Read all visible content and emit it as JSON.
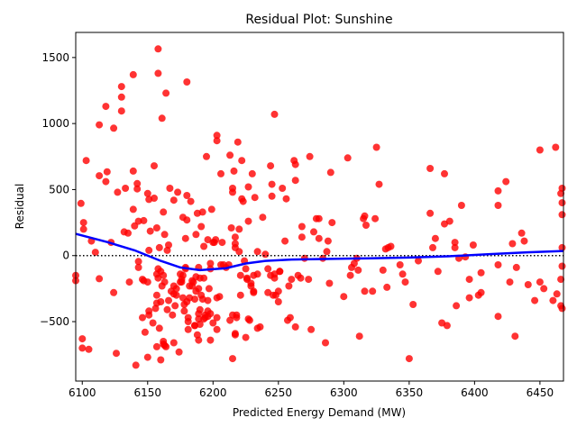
{
  "chart_data": {
    "type": "scatter",
    "title": "Residual Plot: Sunshine",
    "xlabel": "Predicted Energy Demand (MW)",
    "ylabel": "Residual",
    "xlim": [
      6095,
      6468
    ],
    "ylim": [
      -950,
      1690
    ],
    "xticks": [
      6100,
      6150,
      6200,
      6250,
      6300,
      6350,
      6400,
      6450
    ],
    "yticks": [
      -500,
      0,
      500,
      1000,
      1500
    ],
    "grid": false,
    "zero_line": {
      "y": 0,
      "style": "dotted",
      "color": "#000000"
    },
    "colors": {
      "points": "#ff0000",
      "trend": "#0000ff"
    },
    "points": [
      [
        6095,
        -150
      ],
      [
        6095,
        -190
      ],
      [
        6099,
        395
      ],
      [
        6100,
        -630
      ],
      [
        6100,
        -700
      ],
      [
        6101,
        250
      ],
      [
        6101,
        200
      ],
      [
        6103,
        720
      ],
      [
        6105,
        -710
      ],
      [
        6107,
        110
      ],
      [
        6110,
        25
      ],
      [
        6113,
        990
      ],
      [
        6113,
        605
      ],
      [
        6113,
        -175
      ],
      [
        6118,
        1130
      ],
      [
        6119,
        635
      ],
      [
        6118,
        560
      ],
      [
        6122,
        100
      ],
      [
        6124,
        -280
      ],
      [
        6124,
        965
      ],
      [
        6126,
        -740
      ],
      [
        6127,
        480
      ],
      [
        6130,
        1280
      ],
      [
        6130,
        1200
      ],
      [
        6130,
        1095
      ],
      [
        6132,
        180
      ],
      [
        6133,
        510
      ],
      [
        6135,
        170
      ],
      [
        6136,
        -200
      ],
      [
        6139,
        1370
      ],
      [
        6139,
        640
      ],
      [
        6139,
        350
      ],
      [
        6140,
        225
      ],
      [
        6141,
        -830
      ],
      [
        6142,
        545
      ],
      [
        6142,
        505
      ],
      [
        6143,
        260
      ],
      [
        6143,
        -90
      ],
      [
        6143,
        -45
      ],
      [
        6146,
        -470
      ],
      [
        6146,
        -180
      ],
      [
        6147,
        265
      ],
      [
        6147,
        -190
      ],
      [
        6148,
        -580
      ],
      [
        6150,
        470
      ],
      [
        6150,
        -770
      ],
      [
        6150,
        -200
      ],
      [
        6151,
        -420
      ],
      [
        6151,
        -450
      ],
      [
        6151,
        40
      ],
      [
        6151,
        425
      ],
      [
        6152,
        185
      ],
      [
        6154,
        -510
      ],
      [
        6155,
        680
      ],
      [
        6155,
        435
      ],
      [
        6156,
        -400
      ],
      [
        6157,
        -360
      ],
      [
        6157,
        -300
      ],
      [
        6157,
        210
      ],
      [
        6157,
        -690
      ],
      [
        6157,
        -140
      ],
      [
        6158,
        1565
      ],
      [
        6158,
        1380
      ],
      [
        6158,
        -100
      ],
      [
        6158,
        -170
      ],
      [
        6159,
        60
      ],
      [
        6160,
        -790
      ],
      [
        6159,
        -550
      ],
      [
        6160,
        -350
      ],
      [
        6160,
        -120
      ],
      [
        6161,
        -230
      ],
      [
        6161,
        1040
      ],
      [
        6162,
        -150
      ],
      [
        6162,
        330
      ],
      [
        6162,
        -650
      ],
      [
        6162,
        -670
      ],
      [
        6163,
        -680
      ],
      [
        6163,
        160
      ],
      [
        6163,
        -200
      ],
      [
        6164,
        -690
      ],
      [
        6164,
        1230
      ],
      [
        6165,
        40
      ],
      [
        6165,
        -410
      ],
      [
        6166,
        -340
      ],
      [
        6166,
        80
      ],
      [
        6167,
        510
      ],
      [
        6168,
        -270
      ],
      [
        6169,
        -450
      ],
      [
        6170,
        -660
      ],
      [
        6170,
        -290
      ],
      [
        6170,
        -230
      ],
      [
        6170,
        420
      ],
      [
        6171,
        -380
      ],
      [
        6172,
        -300
      ],
      [
        6172,
        -250
      ],
      [
        6173,
        480
      ],
      [
        6174,
        -730
      ],
      [
        6175,
        -200
      ],
      [
        6175,
        -140
      ],
      [
        6176,
        -180
      ],
      [
        6176,
        -200
      ],
      [
        6177,
        290
      ],
      [
        6177,
        -320
      ],
      [
        6177,
        -150
      ],
      [
        6178,
        -420
      ],
      [
        6178,
        -370
      ],
      [
        6179,
        130
      ],
      [
        6179,
        -100
      ],
      [
        6179,
        -90
      ],
      [
        6180,
        -350
      ],
      [
        6180,
        455
      ],
      [
        6180,
        1315
      ],
      [
        6180,
        270
      ],
      [
        6181,
        -470
      ],
      [
        6181,
        -500
      ],
      [
        6181,
        -560
      ],
      [
        6182,
        -230
      ],
      [
        6182,
        -320
      ],
      [
        6183,
        410
      ],
      [
        6184,
        -230
      ],
      [
        6184,
        -190
      ],
      [
        6185,
        -200
      ],
      [
        6186,
        -330
      ],
      [
        6186,
        -530
      ],
      [
        6186,
        -530
      ],
      [
        6187,
        160
      ],
      [
        6187,
        -270
      ],
      [
        6187,
        -160
      ],
      [
        6188,
        -600
      ],
      [
        6188,
        320
      ],
      [
        6189,
        -250
      ],
      [
        6189,
        -440
      ],
      [
        6189,
        -480
      ],
      [
        6189,
        -640
      ],
      [
        6189,
        -90
      ],
      [
        6190,
        -410
      ],
      [
        6190,
        -520
      ],
      [
        6190,
        -170
      ],
      [
        6191,
        -300
      ],
      [
        6191,
        220
      ],
      [
        6192,
        -330
      ],
      [
        6192,
        330
      ],
      [
        6193,
        70
      ],
      [
        6193,
        -170
      ],
      [
        6193,
        -480
      ],
      [
        6194,
        -470
      ],
      [
        6194,
        -450
      ],
      [
        6195,
        750
      ],
      [
        6196,
        120
      ],
      [
        6196,
        -340
      ],
      [
        6196,
        -460
      ],
      [
        6196,
        -420
      ],
      [
        6197,
        -250
      ],
      [
        6198,
        -640
      ],
      [
        6198,
        -440
      ],
      [
        6198,
        -100
      ],
      [
        6198,
        -60
      ],
      [
        6199,
        350
      ],
      [
        6200,
        -510
      ],
      [
        6200,
        100
      ],
      [
        6201,
        100
      ],
      [
        6202,
        120
      ],
      [
        6203,
        910
      ],
      [
        6203,
        870
      ],
      [
        6203,
        -320
      ],
      [
        6203,
        -560
      ],
      [
        6203,
        -470
      ],
      [
        6205,
        -310
      ],
      [
        6206,
        620
      ],
      [
        6206,
        -70
      ],
      [
        6207,
        100
      ],
      [
        6208,
        -70
      ],
      [
        6210,
        -90
      ],
      [
        6212,
        -70
      ],
      [
        6213,
        760
      ],
      [
        6213,
        -490
      ],
      [
        6214,
        210
      ],
      [
        6215,
        510
      ],
      [
        6215,
        480
      ],
      [
        6215,
        -780
      ],
      [
        6215,
        -450
      ],
      [
        6216,
        640
      ],
      [
        6217,
        90
      ],
      [
        6217,
        140
      ],
      [
        6217,
        60
      ],
      [
        6217,
        -590
      ],
      [
        6217,
        -600
      ],
      [
        6218,
        -470
      ],
      [
        6218,
        -450
      ],
      [
        6219,
        860
      ],
      [
        6220,
        200
      ],
      [
        6220,
        30
      ],
      [
        6221,
        -300
      ],
      [
        6221,
        -150
      ],
      [
        6222,
        720
      ],
      [
        6222,
        430
      ],
      [
        6223,
        410
      ],
      [
        6224,
        -40
      ],
      [
        6225,
        -100
      ],
      [
        6225,
        -620
      ],
      [
        6226,
        -170
      ],
      [
        6226,
        -180
      ],
      [
        6227,
        520
      ],
      [
        6227,
        260
      ],
      [
        6227,
        -480
      ],
      [
        6228,
        -490
      ],
      [
        6229,
        -230
      ],
      [
        6229,
        -210
      ],
      [
        6230,
        620
      ],
      [
        6231,
        -270
      ],
      [
        6231,
        -150
      ],
      [
        6231,
        -280
      ],
      [
        6232,
        440
      ],
      [
        6234,
        -550
      ],
      [
        6234,
        30
      ],
      [
        6234,
        -140
      ],
      [
        6236,
        -540
      ],
      [
        6238,
        290
      ],
      [
        6240,
        10
      ],
      [
        6242,
        -100
      ],
      [
        6242,
        -280
      ],
      [
        6244,
        -150
      ],
      [
        6244,
        680
      ],
      [
        6245,
        540
      ],
      [
        6245,
        450
      ],
      [
        6246,
        -300
      ],
      [
        6247,
        -140
      ],
      [
        6247,
        -170
      ],
      [
        6247,
        1070
      ],
      [
        6248,
        -300
      ],
      [
        6250,
        -270
      ],
      [
        6250,
        -350
      ],
      [
        6251,
        -120
      ],
      [
        6251,
        -120
      ],
      [
        6253,
        510
      ],
      [
        6255,
        110
      ],
      [
        6256,
        430
      ],
      [
        6257,
        -490
      ],
      [
        6258,
        -230
      ],
      [
        6259,
        -470
      ],
      [
        6260,
        -180
      ],
      [
        6262,
        720
      ],
      [
        6263,
        690
      ],
      [
        6263,
        570
      ],
      [
        6263,
        -540
      ],
      [
        6265,
        -150
      ],
      [
        6267,
        -170
      ],
      [
        6268,
        220
      ],
      [
        6268,
        140
      ],
      [
        6270,
        -20
      ],
      [
        6273,
        -180
      ],
      [
        6274,
        750
      ],
      [
        6275,
        -560
      ],
      [
        6277,
        180
      ],
      [
        6279,
        280
      ],
      [
        6281,
        280
      ],
      [
        6281,
        130
      ],
      [
        6284,
        -20
      ],
      [
        6286,
        -660
      ],
      [
        6287,
        30
      ],
      [
        6288,
        110
      ],
      [
        6289,
        -210
      ],
      [
        6290,
        630
      ],
      [
        6291,
        250
      ],
      [
        6300,
        -310
      ],
      [
        6303,
        740
      ],
      [
        6305,
        -150
      ],
      [
        6306,
        -90
      ],
      [
        6308,
        -60
      ],
      [
        6310,
        -20
      ],
      [
        6311,
        -110
      ],
      [
        6312,
        -610
      ],
      [
        6315,
        280
      ],
      [
        6316,
        300
      ],
      [
        6316,
        -270
      ],
      [
        6317,
        230
      ],
      [
        6322,
        -270
      ],
      [
        6324,
        280
      ],
      [
        6325,
        820
      ],
      [
        6327,
        540
      ],
      [
        6330,
        -110
      ],
      [
        6332,
        50
      ],
      [
        6333,
        -240
      ],
      [
        6334,
        60
      ],
      [
        6336,
        70
      ],
      [
        6343,
        -70
      ],
      [
        6345,
        -140
      ],
      [
        6347,
        -200
      ],
      [
        6350,
        -780
      ],
      [
        6353,
        -370
      ],
      [
        6357,
        -40
      ],
      [
        6366,
        660
      ],
      [
        6366,
        320
      ],
      [
        6368,
        60
      ],
      [
        6370,
        130
      ],
      [
        6372,
        -120
      ],
      [
        6375,
        -510
      ],
      [
        6377,
        620
      ],
      [
        6377,
        240
      ],
      [
        6379,
        -530
      ],
      [
        6381,
        260
      ],
      [
        6385,
        100
      ],
      [
        6385,
        60
      ],
      [
        6386,
        -380
      ],
      [
        6388,
        -20
      ],
      [
        6390,
        380
      ],
      [
        6393,
        -10
      ],
      [
        6396,
        -320
      ],
      [
        6396,
        -180
      ],
      [
        6399,
        80
      ],
      [
        6403,
        -300
      ],
      [
        6405,
        -280
      ],
      [
        6405,
        -130
      ],
      [
        6418,
        490
      ],
      [
        6418,
        380
      ],
      [
        6418,
        -460
      ],
      [
        6418,
        -70
      ],
      [
        6424,
        560
      ],
      [
        6427,
        -200
      ],
      [
        6429,
        90
      ],
      [
        6431,
        -610
      ],
      [
        6432,
        -90
      ],
      [
        6436,
        170
      ],
      [
        6438,
        110
      ],
      [
        6441,
        -220
      ],
      [
        6446,
        -340
      ],
      [
        6450,
        -200
      ],
      [
        6450,
        800
      ],
      [
        6453,
        -250
      ],
      [
        6460,
        -340
      ],
      [
        6462,
        820
      ],
      [
        6463,
        -290
      ],
      [
        6466,
        -180
      ],
      [
        6466,
        -380
      ],
      [
        6466,
        470
      ],
      [
        6467,
        510
      ],
      [
        6467,
        400
      ],
      [
        6467,
        310
      ],
      [
        6467,
        60
      ],
      [
        6467,
        -80
      ],
      [
        6467,
        -400
      ]
    ],
    "trend_line": [
      [
        6095,
        165
      ],
      [
        6120,
        100
      ],
      [
        6140,
        40
      ],
      [
        6160,
        -40
      ],
      [
        6175,
        -90
      ],
      [
        6190,
        -110
      ],
      [
        6210,
        -95
      ],
      [
        6225,
        -60
      ],
      [
        6240,
        -40
      ],
      [
        6260,
        -30
      ],
      [
        6290,
        -25
      ],
      [
        6320,
        -20
      ],
      [
        6350,
        -15
      ],
      [
        6380,
        -5
      ],
      [
        6410,
        10
      ],
      [
        6440,
        25
      ],
      [
        6468,
        35
      ]
    ]
  }
}
